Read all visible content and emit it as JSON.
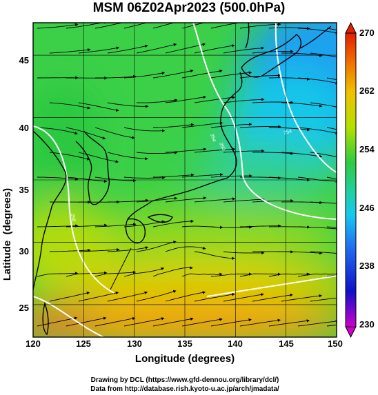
{
  "title": "MSM 06Z02Apr2023 (500.0hPa)",
  "xlabel": "Longitude (degrees)",
  "ylabel": "Latitude  (degrees)",
  "x_ticks": [
    "120",
    "125",
    "130",
    "135",
    "140",
    "145",
    "150"
  ],
  "y_ticks": [
    "45",
    "40",
    "35",
    "30",
    "25"
  ],
  "colorbar_ticks": [
    "270",
    "262",
    "254",
    "246",
    "238",
    "230"
  ],
  "credits": {
    "line1": "Drawing by DCL (https://www.gfd-dennou.org/library/dcl/)",
    "line2": "Data from http://database.rish.kyoto-u.ac.jp/arch/jmadata/"
  },
  "contour_labels": [
    "250",
    "254",
    "254",
    "258"
  ],
  "map": {
    "lon_range": [
      120,
      150
    ],
    "lat_range": [
      22.4,
      47.6
    ],
    "colorbar_range": [
      230,
      270
    ],
    "colormap": [
      "#cc00cc",
      "#1010c8",
      "#1e6ef0",
      "#18c8f0",
      "#20d0a0",
      "#2ccc40",
      "#b4e000",
      "#f0c000",
      "#f07000",
      "#e02000"
    ],
    "features": [
      "temperature shading",
      "streamlines",
      "contours",
      "coastlines",
      "lat-lon grid"
    ]
  }
}
